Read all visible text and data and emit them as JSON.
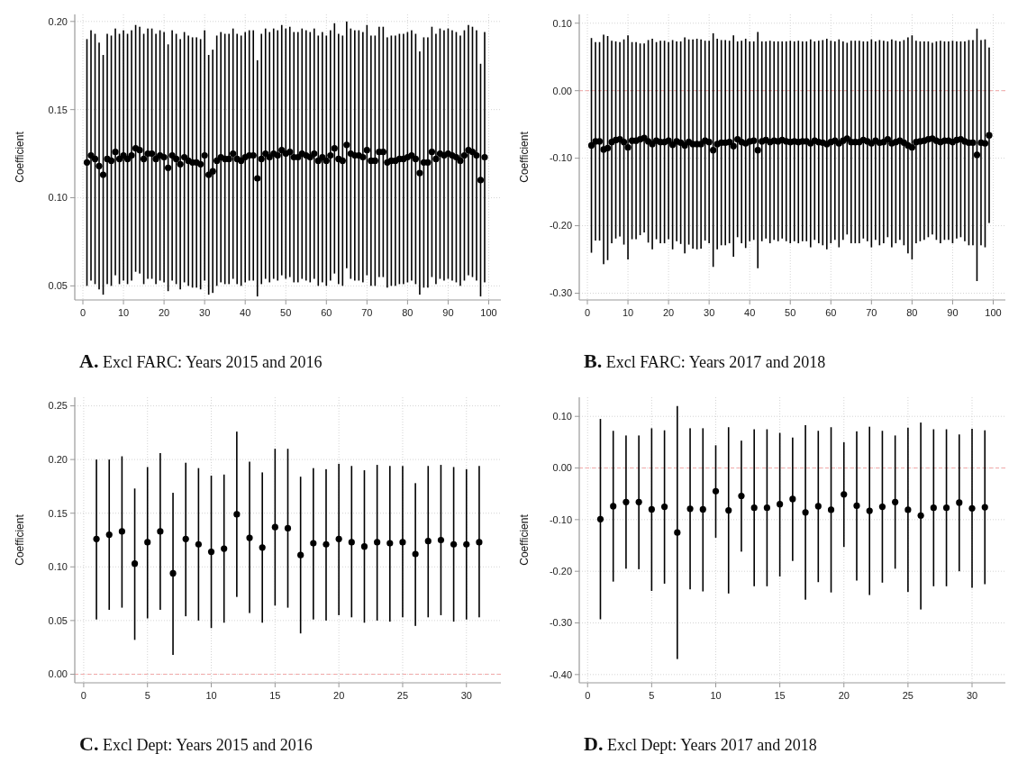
{
  "chart_data": [
    {
      "type": "scatter",
      "title": "A. Excl FARC: Years 2015 and 2016",
      "ylabel": "Coefficient",
      "color": "#000000",
      "marker": "circle",
      "grid": true,
      "x": [
        1,
        2,
        3,
        4,
        5,
        6,
        7,
        8,
        9,
        10,
        11,
        12,
        13,
        14,
        15,
        16,
        17,
        18,
        19,
        20,
        21,
        22,
        23,
        24,
        25,
        26,
        27,
        28,
        29,
        30,
        31,
        32,
        33,
        34,
        35,
        36,
        37,
        38,
        39,
        40,
        41,
        42,
        43,
        44,
        45,
        46,
        47,
        48,
        49,
        50,
        51,
        52,
        53,
        54,
        55,
        56,
        57,
        58,
        59,
        60,
        61,
        62,
        63,
        64,
        65,
        66,
        67,
        68,
        69,
        70,
        71,
        72,
        73,
        74,
        75,
        76,
        77,
        78,
        79,
        80,
        81,
        82,
        83,
        84,
        85,
        86,
        87,
        88,
        89,
        90,
        91,
        92,
        93,
        94,
        95,
        96,
        97,
        98,
        99
      ],
      "values": [
        0.12,
        0.124,
        0.122,
        0.118,
        0.113,
        0.122,
        0.121,
        0.126,
        0.122,
        0.124,
        0.122,
        0.124,
        0.128,
        0.127,
        0.122,
        0.125,
        0.125,
        0.122,
        0.124,
        0.123,
        0.117,
        0.124,
        0.122,
        0.119,
        0.123,
        0.121,
        0.12,
        0.12,
        0.119,
        0.124,
        0.113,
        0.115,
        0.121,
        0.123,
        0.122,
        0.122,
        0.125,
        0.122,
        0.121,
        0.123,
        0.124,
        0.124,
        0.111,
        0.122,
        0.125,
        0.123,
        0.125,
        0.124,
        0.127,
        0.125,
        0.126,
        0.123,
        0.123,
        0.125,
        0.124,
        0.123,
        0.125,
        0.121,
        0.123,
        0.121,
        0.124,
        0.128,
        0.122,
        0.121,
        0.13,
        0.125,
        0.124,
        0.124,
        0.123,
        0.127,
        0.121,
        0.121,
        0.126,
        0.126,
        0.12,
        0.121,
        0.121,
        0.122,
        0.122,
        0.123,
        0.124,
        0.122,
        0.114,
        0.12,
        0.12,
        0.126,
        0.122,
        0.125,
        0.124,
        0.125,
        0.124,
        0.123,
        0.121,
        0.124,
        0.127,
        0.126,
        0.124,
        0.11,
        0.123
      ],
      "errors": [
        0.07,
        0.071,
        0.071,
        0.07,
        0.068,
        0.071,
        0.071,
        0.07,
        0.071,
        0.071,
        0.071,
        0.071,
        0.07,
        0.07,
        0.071,
        0.071,
        0.071,
        0.071,
        0.071,
        0.071,
        0.07,
        0.071,
        0.071,
        0.071,
        0.071,
        0.071,
        0.071,
        0.071,
        0.071,
        0.071,
        0.068,
        0.069,
        0.071,
        0.071,
        0.071,
        0.071,
        0.071,
        0.071,
        0.071,
        0.071,
        0.071,
        0.071,
        0.067,
        0.071,
        0.071,
        0.071,
        0.071,
        0.071,
        0.071,
        0.071,
        0.071,
        0.071,
        0.071,
        0.071,
        0.071,
        0.071,
        0.071,
        0.071,
        0.071,
        0.071,
        0.071,
        0.071,
        0.071,
        0.071,
        0.07,
        0.071,
        0.071,
        0.071,
        0.071,
        0.071,
        0.071,
        0.071,
        0.071,
        0.071,
        0.071,
        0.071,
        0.071,
        0.071,
        0.071,
        0.071,
        0.071,
        0.071,
        0.069,
        0.071,
        0.071,
        0.071,
        0.071,
        0.071,
        0.071,
        0.071,
        0.071,
        0.071,
        0.071,
        0.071,
        0.071,
        0.071,
        0.071,
        0.066,
        0.071
      ],
      "xlim": [
        -2,
        103
      ],
      "xticks": [
        0,
        10,
        20,
        30,
        40,
        50,
        60,
        70,
        80,
        90,
        100
      ],
      "ylim": [
        0.042,
        0.204
      ],
      "yticks": [
        {
          "value": 0.05,
          "label": "0.05"
        },
        {
          "value": 0.1,
          "label": "0.10"
        },
        {
          "value": 0.15,
          "label": "0.15"
        },
        {
          "value": 0.2,
          "label": "0.20"
        }
      ]
    },
    {
      "type": "scatter",
      "title": "B. Excl FARC: Years 2017 and 2018",
      "ylabel": "Coefficient",
      "color": "#000000",
      "marker": "circle",
      "grid": true,
      "x": [
        1,
        2,
        3,
        4,
        5,
        6,
        7,
        8,
        9,
        10,
        11,
        12,
        13,
        14,
        15,
        16,
        17,
        18,
        19,
        20,
        21,
        22,
        23,
        24,
        25,
        26,
        27,
        28,
        29,
        30,
        31,
        32,
        33,
        34,
        35,
        36,
        37,
        38,
        39,
        40,
        41,
        42,
        43,
        44,
        45,
        46,
        47,
        48,
        49,
        50,
        51,
        52,
        53,
        54,
        55,
        56,
        57,
        58,
        59,
        60,
        61,
        62,
        63,
        64,
        65,
        66,
        67,
        68,
        69,
        70,
        71,
        72,
        73,
        74,
        75,
        76,
        77,
        78,
        79,
        80,
        81,
        82,
        83,
        84,
        85,
        86,
        87,
        88,
        89,
        90,
        91,
        92,
        93,
        94,
        95,
        96,
        97,
        98,
        99
      ],
      "values": [
        -0.081,
        -0.075,
        -0.075,
        -0.087,
        -0.085,
        -0.076,
        -0.073,
        -0.072,
        -0.076,
        -0.084,
        -0.074,
        -0.074,
        -0.072,
        -0.07,
        -0.075,
        -0.079,
        -0.074,
        -0.076,
        -0.076,
        -0.074,
        -0.08,
        -0.075,
        -0.077,
        -0.081,
        -0.076,
        -0.079,
        -0.079,
        -0.079,
        -0.074,
        -0.076,
        -0.088,
        -0.079,
        -0.077,
        -0.077,
        -0.076,
        -0.082,
        -0.072,
        -0.076,
        -0.078,
        -0.075,
        -0.074,
        -0.088,
        -0.075,
        -0.073,
        -0.076,
        -0.074,
        -0.075,
        -0.073,
        -0.075,
        -0.076,
        -0.075,
        -0.076,
        -0.075,
        -0.075,
        -0.078,
        -0.074,
        -0.076,
        -0.077,
        -0.079,
        -0.076,
        -0.074,
        -0.078,
        -0.074,
        -0.071,
        -0.076,
        -0.076,
        -0.076,
        -0.073,
        -0.075,
        -0.078,
        -0.074,
        -0.077,
        -0.076,
        -0.072,
        -0.078,
        -0.076,
        -0.074,
        -0.077,
        -0.081,
        -0.084,
        -0.076,
        -0.075,
        -0.074,
        -0.072,
        -0.071,
        -0.074,
        -0.076,
        -0.074,
        -0.074,
        -0.076,
        -0.073,
        -0.072,
        -0.075,
        -0.077,
        -0.077,
        -0.095,
        -0.077,
        -0.078,
        -0.066
      ],
      "errors": [
        0.159,
        0.147,
        0.147,
        0.17,
        0.166,
        0.15,
        0.146,
        0.144,
        0.152,
        0.166,
        0.146,
        0.146,
        0.142,
        0.14,
        0.15,
        0.156,
        0.146,
        0.15,
        0.15,
        0.146,
        0.155,
        0.148,
        0.15,
        0.16,
        0.152,
        0.155,
        0.156,
        0.155,
        0.148,
        0.15,
        0.173,
        0.156,
        0.152,
        0.152,
        0.15,
        0.164,
        0.145,
        0.15,
        0.155,
        0.148,
        0.147,
        0.175,
        0.148,
        0.146,
        0.15,
        0.147,
        0.148,
        0.146,
        0.148,
        0.15,
        0.148,
        0.15,
        0.148,
        0.148,
        0.154,
        0.147,
        0.15,
        0.152,
        0.156,
        0.15,
        0.147,
        0.154,
        0.147,
        0.142,
        0.15,
        0.15,
        0.15,
        0.146,
        0.148,
        0.154,
        0.147,
        0.152,
        0.15,
        0.145,
        0.154,
        0.15,
        0.147,
        0.152,
        0.16,
        0.166,
        0.15,
        0.148,
        0.147,
        0.145,
        0.142,
        0.147,
        0.15,
        0.147,
        0.147,
        0.15,
        0.146,
        0.145,
        0.148,
        0.152,
        0.152,
        0.187,
        0.152,
        0.154,
        0.13
      ],
      "xlim": [
        -2,
        103
      ],
      "xticks": [
        0,
        10,
        20,
        30,
        40,
        50,
        60,
        70,
        80,
        90,
        100
      ],
      "ylim": [
        -0.31,
        0.113
      ],
      "yticks": [
        {
          "value": -0.3,
          "label": "-0.30"
        },
        {
          "value": -0.2,
          "label": "-0.20"
        },
        {
          "value": -0.1,
          "label": "-0.10"
        },
        {
          "value": 0,
          "label": "0.00"
        },
        {
          "value": 0.1,
          "label": "0.10"
        }
      ],
      "ref_lines": [
        {
          "axis": "y",
          "value": 0,
          "color": "#f2a7a7",
          "line_style": "dashed"
        }
      ]
    },
    {
      "type": "scatter",
      "title": "C. Excl Dept: Years 2015 and 2016",
      "ylabel": "Coefficient",
      "color": "#000000",
      "marker": "circle",
      "grid": true,
      "x": [
        1,
        2,
        3,
        4,
        5,
        6,
        7,
        8,
        9,
        10,
        11,
        12,
        13,
        14,
        15,
        16,
        17,
        18,
        19,
        20,
        21,
        22,
        23,
        24,
        25,
        26,
        27,
        28,
        29,
        30,
        31
      ],
      "values": [
        0.126,
        0.13,
        0.133,
        0.103,
        0.123,
        0.133,
        0.094,
        0.126,
        0.121,
        0.114,
        0.117,
        0.149,
        0.127,
        0.118,
        0.137,
        0.136,
        0.111,
        0.122,
        0.121,
        0.126,
        0.123,
        0.119,
        0.123,
        0.122,
        0.123,
        0.112,
        0.124,
        0.125,
        0.121,
        0.121,
        0.123
      ],
      "errors": [
        [
          0.051,
          0.2
        ],
        [
          0.06,
          0.2
        ],
        [
          0.062,
          0.203
        ],
        [
          0.032,
          0.173
        ],
        [
          0.052,
          0.193
        ],
        [
          0.06,
          0.206
        ],
        [
          0.018,
          0.169
        ],
        [
          0.054,
          0.197
        ],
        [
          0.05,
          0.192
        ],
        [
          0.043,
          0.185
        ],
        [
          0.048,
          0.186
        ],
        [
          0.072,
          0.226
        ],
        [
          0.057,
          0.198
        ],
        [
          0.048,
          0.188
        ],
        [
          0.064,
          0.21
        ],
        [
          0.062,
          0.21
        ],
        [
          0.038,
          0.184
        ],
        [
          0.051,
          0.192
        ],
        [
          0.05,
          0.191
        ],
        [
          0.055,
          0.196
        ],
        [
          0.053,
          0.194
        ],
        [
          0.048,
          0.19
        ],
        [
          0.05,
          0.195
        ],
        [
          0.049,
          0.194
        ],
        [
          0.053,
          0.194
        ],
        [
          0.045,
          0.178
        ],
        [
          0.053,
          0.194
        ],
        [
          0.055,
          0.195
        ],
        [
          0.049,
          0.193
        ],
        [
          0.051,
          0.191
        ],
        [
          0.053,
          0.194
        ]
      ],
      "xlim": [
        -0.7,
        32.7
      ],
      "xticks": [
        0,
        5,
        10,
        15,
        20,
        25,
        30
      ],
      "ylim": [
        -0.008,
        0.258
      ],
      "yticks": [
        {
          "value": 0,
          "label": "0.00"
        },
        {
          "value": 0.05,
          "label": "0.05"
        },
        {
          "value": 0.1,
          "label": "0.10"
        },
        {
          "value": 0.15,
          "label": "0.15"
        },
        {
          "value": 0.2,
          "label": "0.20"
        },
        {
          "value": 0.25,
          "label": "0.25"
        }
      ],
      "ref_lines": [
        {
          "axis": "y",
          "value": 0,
          "color": "#f2a7a7",
          "line_style": "dashed"
        }
      ]
    },
    {
      "type": "scatter",
      "title": "D. Excl Dept: Years 2017 and 2018",
      "ylabel": "Coefficient",
      "color": "#000000",
      "marker": "circle",
      "grid": true,
      "x": [
        1,
        2,
        3,
        4,
        5,
        6,
        7,
        8,
        9,
        10,
        11,
        12,
        13,
        14,
        15,
        16,
        17,
        18,
        19,
        20,
        21,
        22,
        23,
        24,
        25,
        26,
        27,
        28,
        29,
        30,
        31
      ],
      "values": [
        -0.099,
        -0.074,
        -0.066,
        -0.066,
        -0.08,
        -0.075,
        -0.125,
        -0.079,
        -0.08,
        -0.045,
        -0.082,
        -0.054,
        -0.077,
        -0.077,
        -0.07,
        -0.06,
        -0.086,
        -0.074,
        -0.081,
        -0.051,
        -0.073,
        -0.083,
        -0.075,
        -0.066,
        -0.081,
        -0.092,
        -0.077,
        -0.077,
        -0.067,
        -0.078,
        -0.076
      ],
      "errors": [
        [
          -0.293,
          0.095
        ],
        [
          -0.22,
          0.072
        ],
        [
          -0.195,
          0.063
        ],
        [
          -0.196,
          0.063
        ],
        [
          -0.238,
          0.077
        ],
        [
          -0.224,
          0.073
        ],
        [
          -0.37,
          0.12
        ],
        [
          -0.235,
          0.077
        ],
        [
          -0.239,
          0.077
        ],
        [
          -0.135,
          0.044
        ],
        [
          -0.243,
          0.079
        ],
        [
          -0.162,
          0.053
        ],
        [
          -0.229,
          0.075
        ],
        [
          -0.229,
          0.075
        ],
        [
          -0.21,
          0.068
        ],
        [
          -0.18,
          0.059
        ],
        [
          -0.255,
          0.083
        ],
        [
          -0.221,
          0.072
        ],
        [
          -0.241,
          0.079
        ],
        [
          -0.153,
          0.05
        ],
        [
          -0.218,
          0.071
        ],
        [
          -0.246,
          0.08
        ],
        [
          -0.222,
          0.072
        ],
        [
          -0.195,
          0.063
        ],
        [
          -0.24,
          0.078
        ],
        [
          -0.274,
          0.088
        ],
        [
          -0.229,
          0.075
        ],
        [
          -0.229,
          0.075
        ],
        [
          -0.2,
          0.065
        ],
        [
          -0.232,
          0.076
        ],
        [
          -0.225,
          0.073
        ]
      ],
      "xlim": [
        -0.65,
        32.6
      ],
      "xticks": [
        0,
        5,
        10,
        15,
        20,
        25,
        30
      ],
      "ylim": [
        -0.416,
        0.137
      ],
      "yticks": [
        {
          "value": -0.4,
          "label": "-0.40"
        },
        {
          "value": -0.3,
          "label": "-0.30"
        },
        {
          "value": -0.2,
          "label": "-0.20"
        },
        {
          "value": -0.1,
          "label": "-0.10"
        },
        {
          "value": 0,
          "label": "0.00"
        },
        {
          "value": 0.1,
          "label": "0.10"
        }
      ],
      "ref_lines": [
        {
          "axis": "y",
          "value": 0,
          "color": "#f2a7a7",
          "line_style": "dashed"
        }
      ]
    }
  ]
}
